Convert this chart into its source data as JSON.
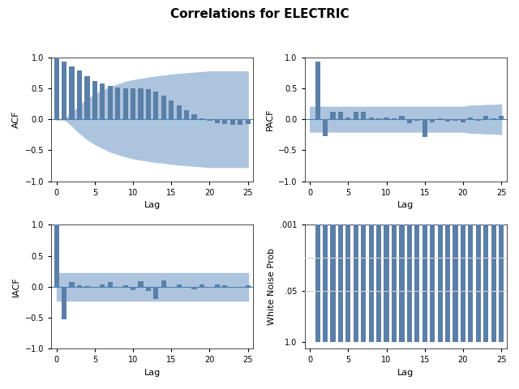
{
  "title": "Correlations for ELECTRIC",
  "bar_color": "#5a7fa8",
  "conf_color": "#adc4de",
  "bg_color": "#ffffff",
  "lags": [
    0,
    1,
    2,
    3,
    4,
    5,
    6,
    7,
    8,
    9,
    10,
    11,
    12,
    13,
    14,
    15,
    16,
    17,
    18,
    19,
    20,
    21,
    22,
    23,
    24,
    25
  ],
  "acf_values": [
    1.0,
    0.93,
    0.85,
    0.78,
    0.7,
    0.62,
    0.58,
    0.54,
    0.51,
    0.5,
    0.5,
    0.5,
    0.48,
    0.44,
    0.38,
    0.3,
    0.22,
    0.15,
    0.08,
    0.02,
    -0.03,
    -0.06,
    -0.08,
    -0.09,
    -0.09,
    -0.08
  ],
  "acf_conf_upper": [
    0.0,
    0.0,
    0.1,
    0.22,
    0.32,
    0.4,
    0.46,
    0.52,
    0.56,
    0.6,
    0.63,
    0.65,
    0.67,
    0.69,
    0.7,
    0.72,
    0.73,
    0.74,
    0.75,
    0.76,
    0.77,
    0.77,
    0.77,
    0.77,
    0.77,
    0.77
  ],
  "acf_conf_lower": [
    0.0,
    0.0,
    -0.1,
    -0.22,
    -0.32,
    -0.4,
    -0.46,
    -0.52,
    -0.56,
    -0.6,
    -0.63,
    -0.65,
    -0.67,
    -0.69,
    -0.7,
    -0.72,
    -0.73,
    -0.74,
    -0.75,
    -0.76,
    -0.77,
    -0.77,
    -0.77,
    -0.77,
    -0.77,
    -0.77
  ],
  "pacf_values": [
    0.0,
    0.93,
    -0.27,
    0.12,
    0.12,
    0.03,
    0.12,
    0.12,
    0.03,
    0.02,
    0.03,
    0.01,
    0.05,
    -0.06,
    -0.03,
    -0.28,
    -0.05,
    0.02,
    -0.04,
    -0.02,
    -0.05,
    0.03,
    -0.02,
    0.06,
    0.02,
    0.05
  ],
  "pacf_conf_upper": [
    0.2,
    0.2,
    0.2,
    0.2,
    0.2,
    0.2,
    0.2,
    0.2,
    0.2,
    0.2,
    0.2,
    0.2,
    0.2,
    0.2,
    0.2,
    0.2,
    0.2,
    0.2,
    0.2,
    0.2,
    0.2,
    0.22,
    0.22,
    0.23,
    0.23,
    0.24
  ],
  "pacf_conf_lower": [
    -0.2,
    -0.2,
    -0.2,
    -0.2,
    -0.2,
    -0.2,
    -0.2,
    -0.2,
    -0.2,
    -0.2,
    -0.2,
    -0.2,
    -0.2,
    -0.2,
    -0.2,
    -0.2,
    -0.2,
    -0.2,
    -0.2,
    -0.2,
    -0.2,
    -0.22,
    -0.22,
    -0.23,
    -0.23,
    -0.24
  ],
  "iacf_values": [
    1.0,
    -0.52,
    0.08,
    0.03,
    0.01,
    -0.01,
    0.04,
    0.08,
    -0.02,
    0.03,
    -0.05,
    0.09,
    -0.07,
    -0.2,
    0.1,
    -0.02,
    0.04,
    0.0,
    -0.04,
    0.04,
    -0.01,
    0.04,
    0.02,
    -0.01,
    -0.01,
    0.02
  ],
  "iacf_conf_upper": [
    0.22,
    0.22,
    0.22,
    0.22,
    0.22,
    0.22,
    0.22,
    0.22,
    0.22,
    0.22,
    0.22,
    0.22,
    0.22,
    0.22,
    0.22,
    0.22,
    0.22,
    0.22,
    0.22,
    0.22,
    0.22,
    0.22,
    0.22,
    0.22,
    0.22,
    0.22
  ],
  "iacf_conf_lower": [
    -0.22,
    -0.22,
    -0.22,
    -0.22,
    -0.22,
    -0.22,
    -0.22,
    -0.22,
    -0.22,
    -0.22,
    -0.22,
    -0.22,
    -0.22,
    -0.22,
    -0.22,
    -0.22,
    -0.22,
    -0.22,
    -0.22,
    -0.22,
    -0.22,
    -0.22,
    -0.22,
    -0.22,
    -0.22,
    -0.22
  ],
  "wn_lags": [
    1,
    2,
    3,
    4,
    5,
    6,
    7,
    8,
    9,
    10,
    11,
    12,
    13,
    14,
    15,
    16,
    17,
    18,
    19,
    20,
    21,
    22,
    23,
    24,
    25
  ],
  "wn_prob_values": [
    0.9999,
    0.9999,
    0.9999,
    0.9999,
    0.9999,
    0.9999,
    0.9999,
    0.9999,
    0.9999,
    0.9999,
    0.9999,
    0.9999,
    0.9999,
    0.9999,
    0.9999,
    0.9999,
    0.9999,
    0.9999,
    0.9999,
    0.9999,
    0.9999,
    0.9999,
    0.9999,
    0.9999,
    0.9999
  ],
  "wn_ref_lines": [
    0.007,
    0.05
  ],
  "xlabel": "Lag",
  "ylabel_acf": "ACF",
  "ylabel_pacf": "PACF",
  "ylabel_iacf": "IACF",
  "ylabel_wn": "White Noise Prob",
  "wn_yticks": [
    0.001,
    0.05,
    1.0
  ],
  "wn_yticklabels": [
    ".001",
    ".05",
    "1.0"
  ]
}
